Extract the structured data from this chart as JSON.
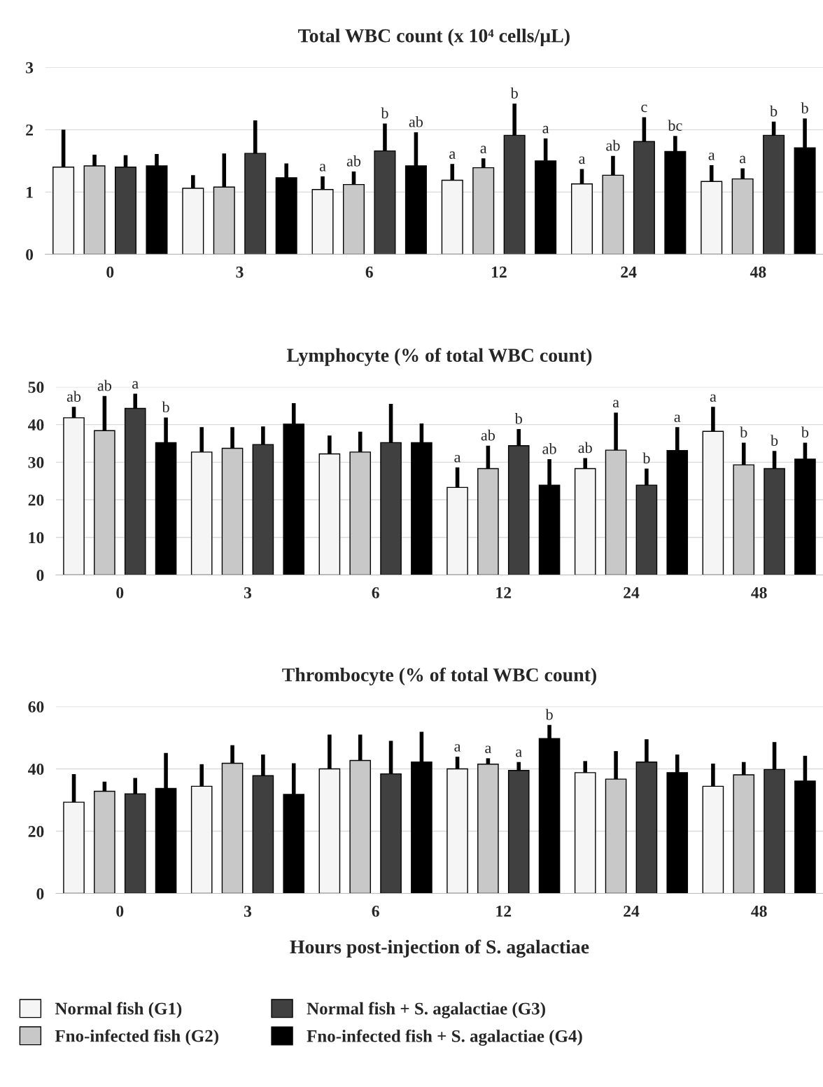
{
  "chart_data": [
    {
      "type": "bar",
      "title": "Total WBC count (x 10⁴ cells/µL)",
      "categories": [
        "0",
        "3",
        "6",
        "12",
        "24",
        "48"
      ],
      "ylim": [
        0,
        3
      ],
      "yticks": [
        0,
        1,
        2,
        3
      ],
      "grid": "y",
      "legend": "bottom",
      "series": [
        {
          "name": "Normal fish (G1)",
          "color": "#f5f5f5",
          "values": [
            1.4,
            1.06,
            1.04,
            1.19,
            1.13,
            1.17
          ],
          "errors": [
            [
              1.4,
              2.0
            ],
            [
              1.06,
              1.27
            ],
            [
              1.04,
              1.25
            ],
            [
              1.19,
              1.45
            ],
            [
              1.13,
              1.37
            ],
            [
              1.17,
              1.43
            ]
          ],
          "value_labels": [
            null,
            null,
            "a",
            "a",
            "a",
            "a"
          ]
        },
        {
          "name": "Fno-infected fish (G2)",
          "color": "#c8c8c8",
          "values": [
            1.42,
            1.08,
            1.12,
            1.39,
            1.27,
            1.21
          ],
          "errors": [
            [
              1.42,
              1.6
            ],
            [
              1.08,
              1.62
            ],
            [
              1.12,
              1.33
            ],
            [
              1.39,
              1.54
            ],
            [
              1.27,
              1.58
            ],
            [
              1.21,
              1.38
            ]
          ],
          "value_labels": [
            null,
            null,
            "ab",
            "a",
            "ab",
            "a"
          ]
        },
        {
          "name": "Normal fish + S. agalactiae (G3)",
          "color": "#404040",
          "values": [
            1.4,
            1.62,
            1.66,
            1.91,
            1.81,
            1.91
          ],
          "errors": [
            [
              1.4,
              1.59
            ],
            [
              1.62,
              2.15
            ],
            [
              1.66,
              2.1
            ],
            [
              1.91,
              2.42
            ],
            [
              1.81,
              2.2
            ],
            [
              1.91,
              2.13
            ]
          ],
          "value_labels": [
            null,
            null,
            "b",
            "b",
            "c",
            "b"
          ]
        },
        {
          "name": "Fno-infected fish + S. agalactiae (G4)",
          "color": "#000000",
          "values": [
            1.42,
            1.23,
            1.42,
            1.5,
            1.65,
            1.71
          ],
          "errors": [
            [
              1.42,
              1.61
            ],
            [
              1.23,
              1.46
            ],
            [
              1.42,
              1.96
            ],
            [
              1.5,
              1.86
            ],
            [
              1.65,
              1.9
            ],
            [
              1.71,
              2.18
            ]
          ],
          "value_labels": [
            null,
            null,
            "ab",
            "a",
            "bc",
            "b"
          ]
        }
      ]
    },
    {
      "type": "bar",
      "title": "Lymphocyte (% of total WBC count)",
      "categories": [
        "0",
        "3",
        "6",
        "12",
        "24",
        "48"
      ],
      "ylim": [
        0,
        50
      ],
      "yticks": [
        0,
        10,
        20,
        30,
        40,
        50
      ],
      "grid": "y",
      "series": [
        {
          "color": "#f5f5f5",
          "values": [
            41.8,
            32.7,
            32.2,
            23.3,
            28.3,
            38.2
          ],
          "errors": [
            [
              41.8,
              44.7
            ],
            [
              32.7,
              39.3
            ],
            [
              32.2,
              37.1
            ],
            [
              23.3,
              28.6
            ],
            [
              28.3,
              31.1
            ],
            [
              38.2,
              44.7
            ]
          ],
          "value_labels": [
            "ab",
            null,
            null,
            "a",
            "ab",
            "a"
          ]
        },
        {
          "color": "#c8c8c8",
          "values": [
            38.4,
            33.7,
            32.7,
            28.3,
            33.2,
            29.3
          ],
          "errors": [
            [
              38.4,
              47.6
            ],
            [
              33.7,
              39.3
            ],
            [
              32.7,
              38.1
            ],
            [
              28.3,
              34.4
            ],
            [
              33.2,
              43.2
            ],
            [
              29.3,
              35.2
            ]
          ],
          "value_labels": [
            "ab",
            null,
            null,
            "ab",
            "a",
            "b"
          ]
        },
        {
          "color": "#404040",
          "values": [
            44.3,
            34.7,
            35.2,
            34.4,
            23.9,
            28.3
          ],
          "errors": [
            [
              44.3,
              48.2
            ],
            [
              34.7,
              39.5
            ],
            [
              35.2,
              45.5
            ],
            [
              34.4,
              38.8
            ],
            [
              23.9,
              28.3
            ],
            [
              28.3,
              33.0
            ]
          ],
          "value_labels": [
            "a",
            null,
            null,
            "b",
            "b",
            "b"
          ]
        },
        {
          "color": "#000000",
          "values": [
            35.2,
            40.1,
            35.2,
            23.9,
            33.1,
            30.8
          ],
          "errors": [
            [
              35.2,
              41.9
            ],
            [
              40.1,
              45.7
            ],
            [
              35.2,
              40.3
            ],
            [
              23.9,
              30.8
            ],
            [
              33.1,
              39.3
            ],
            [
              30.8,
              35.2
            ]
          ],
          "value_labels": [
            "b",
            null,
            null,
            "ab",
            "a",
            "b"
          ]
        }
      ]
    },
    {
      "type": "bar",
      "title": "Thrombocyte (% of total WBC count)",
      "xlabel": "Hours post-injection of S. agalactiae",
      "categories": [
        "0",
        "3",
        "6",
        "12",
        "24",
        "48"
      ],
      "ylim": [
        0,
        60
      ],
      "yticks": [
        0,
        20,
        40,
        60
      ],
      "grid": "y",
      "series": [
        {
          "color": "#f5f5f5",
          "values": [
            29.3,
            34.4,
            40.0,
            40.0,
            38.8,
            34.4
          ],
          "errors": [
            [
              29.3,
              38.3
            ],
            [
              34.4,
              41.5
            ],
            [
              40.0,
              51.0
            ],
            [
              40.0,
              43.9
            ],
            [
              38.8,
              42.5
            ],
            [
              34.4,
              41.7
            ]
          ],
          "value_labels": [
            null,
            null,
            null,
            "a",
            null,
            null
          ]
        },
        {
          "color": "#c8c8c8",
          "values": [
            32.8,
            41.8,
            42.7,
            41.5,
            36.7,
            38.1
          ],
          "errors": [
            [
              32.8,
              35.9
            ],
            [
              41.8,
              47.6
            ],
            [
              42.7,
              51.0
            ],
            [
              41.5,
              43.4
            ],
            [
              36.7,
              45.7
            ],
            [
              38.1,
              42.2
            ]
          ],
          "value_labels": [
            null,
            null,
            null,
            "a",
            null,
            null
          ]
        },
        {
          "color": "#404040",
          "values": [
            32.0,
            37.8,
            38.4,
            39.5,
            42.2,
            39.8
          ],
          "errors": [
            [
              32.0,
              37.1
            ],
            [
              37.8,
              44.6
            ],
            [
              38.4,
              49.0
            ],
            [
              39.5,
              42.2
            ],
            [
              42.2,
              49.5
            ],
            [
              39.8,
              48.6
            ]
          ],
          "value_labels": [
            null,
            null,
            null,
            "a",
            null,
            null
          ]
        },
        {
          "color": "#000000",
          "values": [
            33.7,
            31.8,
            42.2,
            49.7,
            38.8,
            36.1
          ],
          "errors": [
            [
              33.7,
              45.1
            ],
            [
              31.8,
              41.8
            ],
            [
              42.2,
              51.9
            ],
            [
              49.7,
              54.1
            ],
            [
              38.8,
              44.6
            ],
            [
              36.1,
              44.2
            ]
          ],
          "value_labels": [
            null,
            null,
            null,
            "b",
            null,
            null
          ]
        }
      ]
    }
  ]
}
